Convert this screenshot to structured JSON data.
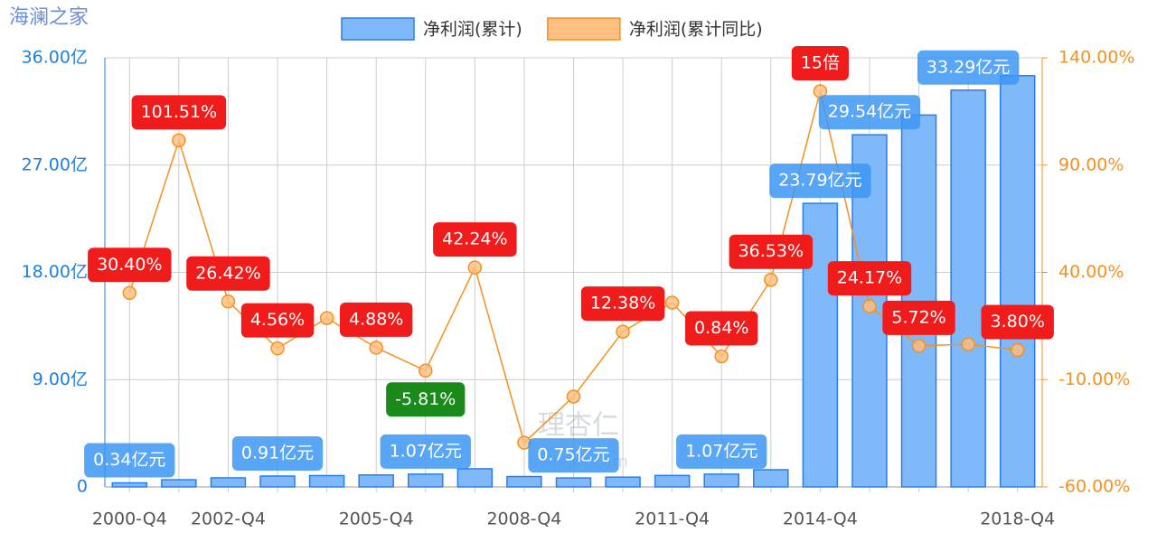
{
  "chart_data": {
    "type": "bar",
    "title": "海澜之家",
    "categories": [
      "2000-Q4",
      null,
      "2002-Q4",
      null,
      null,
      "2005-Q4",
      null,
      null,
      "2008-Q4",
      null,
      null,
      "2011-Q4",
      null,
      null,
      "2014-Q4",
      null,
      null,
      null,
      "2018-Q4"
    ],
    "series": [
      {
        "name": "净利润(累计)",
        "type": "bar",
        "color": "#7fb9f9",
        "edge_color": "#2b7de9",
        "values": [
          0.34,
          0.6,
          0.76,
          0.91,
          0.95,
          1.0,
          1.07,
          1.52,
          0.87,
          0.75,
          0.82,
          0.96,
          1.07,
          1.44,
          23.79,
          29.54,
          31.2,
          33.29,
          34.5
        ],
        "value_labels": [
          "0.34亿元",
          null,
          null,
          "0.91亿元",
          null,
          null,
          "1.07亿元",
          null,
          null,
          "0.75亿元",
          null,
          null,
          "1.07亿元",
          null,
          "23.79亿元",
          "29.54亿元",
          null,
          "33.29亿元",
          null
        ]
      },
      {
        "name": "净利润(累计同比)",
        "type": "line",
        "axis": "y2",
        "color": "#f7901e",
        "marker_color": "#ffbf80",
        "values": [
          30.4,
          101.51,
          26.42,
          4.56,
          18.7,
          4.88,
          -5.81,
          42.24,
          -39.4,
          -17.9,
          12.38,
          25.9,
          0.84,
          36.53,
          124.4,
          24.17,
          5.72,
          6.5,
          3.8
        ],
        "value_labels": [
          "30.40%",
          "101.51%",
          "26.42%",
          "4.56%",
          null,
          "4.88%",
          "-5.81%",
          "42.24%",
          null,
          null,
          "12.38%",
          null,
          "0.84%",
          "36.53%",
          null,
          "24.17%",
          "5.72%",
          null,
          "3.80%"
        ]
      }
    ],
    "annotations": [
      {
        "text": "15倍",
        "x": "2014-Q4"
      }
    ],
    "watermark": [
      "理杏仁",
      "lixinger.com"
    ],
    "ylim": [
      0,
      36
    ],
    "yticks": [
      0,
      {
        "value": 9,
        "label": "9.00亿"
      },
      {
        "value": 18,
        "label": "18.00亿"
      },
      {
        "value": 27,
        "label": "27.00亿"
      },
      {
        "value": 36,
        "label": "36.00亿"
      }
    ],
    "y2lim": [
      -60,
      140
    ],
    "y2ticks": [
      {
        "value": -60,
        "label": "-60.00%"
      },
      {
        "value": -10,
        "label": "-10.00%"
      },
      {
        "value": 40,
        "label": "40.00%"
      },
      {
        "value": 90,
        "label": "90.00%"
      },
      {
        "value": 140,
        "label": "140.00%"
      }
    ],
    "grid": true
  }
}
